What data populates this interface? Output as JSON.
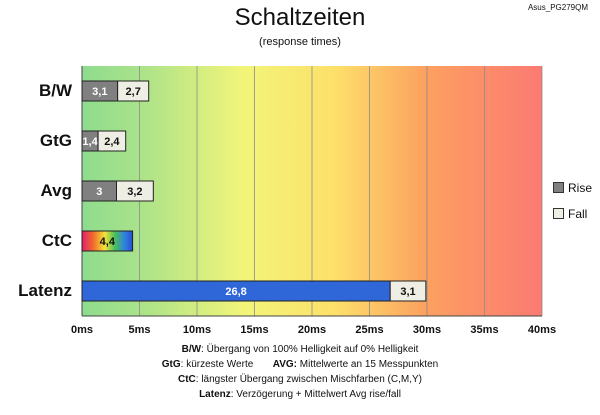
{
  "model_label": "Asus_PG279QM",
  "colors": {
    "rise": "#808080",
    "fall": "#eeeee4",
    "latency": "#2f66d8"
  },
  "chart_data": {
    "type": "bar",
    "orientation": "horizontal",
    "stacked": true,
    "title": "Schaltzeiten",
    "subtitle": "(response times)",
    "categories": [
      "B/W",
      "GtG",
      "Avg",
      "CtC",
      "Latenz"
    ],
    "series": [
      {
        "name": "Rise",
        "values": [
          3.1,
          1.4,
          3,
          4.4,
          26.8
        ],
        "labels": [
          "3,1",
          "1,4",
          "3",
          "4,4",
          "26,8"
        ]
      },
      {
        "name": "Fall",
        "values": [
          2.7,
          2.4,
          3.2,
          null,
          3.1
        ],
        "labels": [
          "2,7",
          "2,4",
          "3,2",
          "",
          "3,1"
        ]
      }
    ],
    "xlim": [
      0,
      40
    ],
    "xticks": [
      "0ms",
      "5ms",
      "10ms",
      "15ms",
      "20ms",
      "25ms",
      "30ms",
      "35ms",
      "40ms"
    ],
    "grid": true,
    "background": "gradient green-yellow-red",
    "legend": {
      "position": "right",
      "entries": [
        "Rise",
        "Fall"
      ]
    }
  },
  "footnotes": {
    "bw_key": "B/W",
    "bw_text": ":  Übergang von 100% Helligkeit auf 0% Helligkeit",
    "gtg_key": "GtG",
    "gtg_text": ": kürzeste  Werte",
    "avg_key": "AVG:",
    "avg_text": " Mittelwerte  an 15 Messpunkten",
    "ctc_key": "CtC",
    "ctc_text": ": längster Übergang  zwischen Mischfarben  (C,M,Y)",
    "lat_key": "Latenz",
    "lat_text": ": Verzögerung  + Mittelwert Avg rise/fall"
  }
}
